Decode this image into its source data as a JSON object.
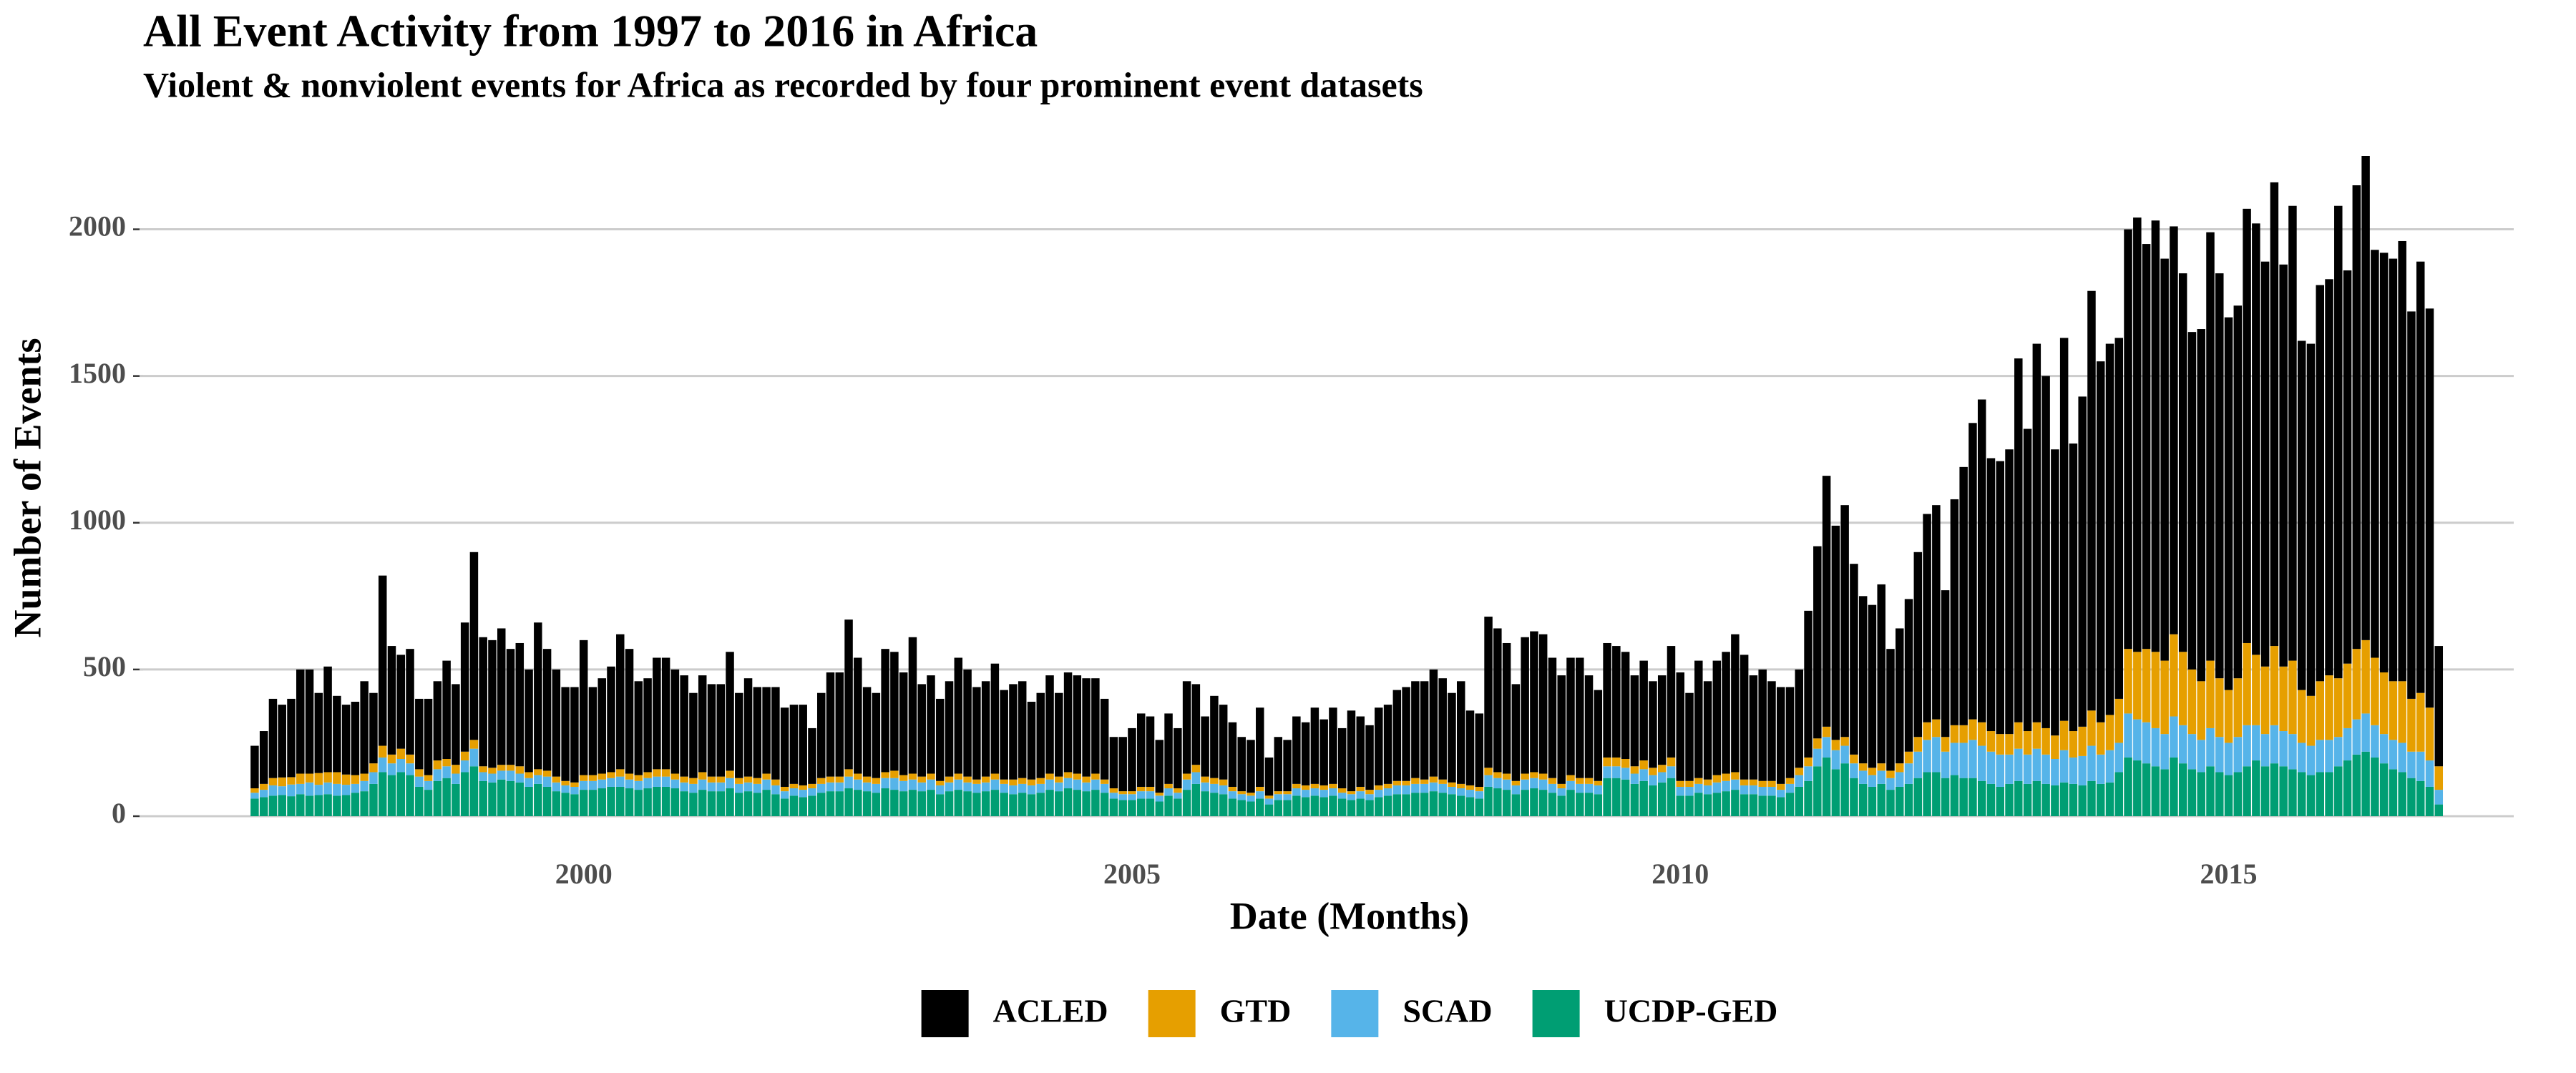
{
  "chart_data": {
    "type": "bar",
    "stacked": true,
    "title": "All Event Activity from 1997 to 2016 in Africa",
    "subtitle": "Violent & nonviolent events for Africa as recorded by four prominent event datasets",
    "x_label": "Date (Months)",
    "y_label": "Number of Events",
    "x": [
      "1997-01",
      "1997-02",
      "1997-03",
      "1997-04",
      "1997-05",
      "1997-06",
      "1997-07",
      "1997-08",
      "1997-09",
      "1997-10",
      "1997-11",
      "1997-12",
      "1998-01",
      "1998-02",
      "1998-03",
      "1998-04",
      "1998-05",
      "1998-06",
      "1998-07",
      "1998-08",
      "1998-09",
      "1998-10",
      "1998-11",
      "1998-12",
      "1999-01",
      "1999-02",
      "1999-03",
      "1999-04",
      "1999-05",
      "1999-06",
      "1999-07",
      "1999-08",
      "1999-09",
      "1999-10",
      "1999-11",
      "1999-12",
      "2000-01",
      "2000-02",
      "2000-03",
      "2000-04",
      "2000-05",
      "2000-06",
      "2000-07",
      "2000-08",
      "2000-09",
      "2000-10",
      "2000-11",
      "2000-12",
      "2001-01",
      "2001-02",
      "2001-03",
      "2001-04",
      "2001-05",
      "2001-06",
      "2001-07",
      "2001-08",
      "2001-09",
      "2001-10",
      "2001-11",
      "2001-12",
      "2002-01",
      "2002-02",
      "2002-03",
      "2002-04",
      "2002-05",
      "2002-06",
      "2002-07",
      "2002-08",
      "2002-09",
      "2002-10",
      "2002-11",
      "2002-12",
      "2003-01",
      "2003-02",
      "2003-03",
      "2003-04",
      "2003-05",
      "2003-06",
      "2003-07",
      "2003-08",
      "2003-09",
      "2003-10",
      "2003-11",
      "2003-12",
      "2004-01",
      "2004-02",
      "2004-03",
      "2004-04",
      "2004-05",
      "2004-06",
      "2004-07",
      "2004-08",
      "2004-09",
      "2004-10",
      "2004-11",
      "2004-12",
      "2005-01",
      "2005-02",
      "2005-03",
      "2005-04",
      "2005-05",
      "2005-06",
      "2005-07",
      "2005-08",
      "2005-09",
      "2005-10",
      "2005-11",
      "2005-12",
      "2006-01",
      "2006-02",
      "2006-03",
      "2006-04",
      "2006-05",
      "2006-06",
      "2006-07",
      "2006-08",
      "2006-09",
      "2006-10",
      "2006-11",
      "2006-12",
      "2007-01",
      "2007-02",
      "2007-03",
      "2007-04",
      "2007-05",
      "2007-06",
      "2007-07",
      "2007-08",
      "2007-09",
      "2007-10",
      "2007-11",
      "2007-12",
      "2008-01",
      "2008-02",
      "2008-03",
      "2008-04",
      "2008-05",
      "2008-06",
      "2008-07",
      "2008-08",
      "2008-09",
      "2008-10",
      "2008-11",
      "2008-12",
      "2009-01",
      "2009-02",
      "2009-03",
      "2009-04",
      "2009-05",
      "2009-06",
      "2009-07",
      "2009-08",
      "2009-09",
      "2009-10",
      "2009-11",
      "2009-12",
      "2010-01",
      "2010-02",
      "2010-03",
      "2010-04",
      "2010-05",
      "2010-06",
      "2010-07",
      "2010-08",
      "2010-09",
      "2010-10",
      "2010-11",
      "2010-12",
      "2011-01",
      "2011-02",
      "2011-03",
      "2011-04",
      "2011-05",
      "2011-06",
      "2011-07",
      "2011-08",
      "2011-09",
      "2011-10",
      "2011-11",
      "2011-12",
      "2012-01",
      "2012-02",
      "2012-03",
      "2012-04",
      "2012-05",
      "2012-06",
      "2012-07",
      "2012-08",
      "2012-09",
      "2012-10",
      "2012-11",
      "2012-12",
      "2013-01",
      "2013-02",
      "2013-03",
      "2013-04",
      "2013-05",
      "2013-06",
      "2013-07",
      "2013-08",
      "2013-09",
      "2013-10",
      "2013-11",
      "2013-12",
      "2014-01",
      "2014-02",
      "2014-03",
      "2014-04",
      "2014-05",
      "2014-06",
      "2014-07",
      "2014-08",
      "2014-09",
      "2014-10",
      "2014-11",
      "2014-12",
      "2015-01",
      "2015-02",
      "2015-03",
      "2015-04",
      "2015-05",
      "2015-06",
      "2015-07",
      "2015-08",
      "2015-09",
      "2015-10",
      "2015-11",
      "2015-12",
      "2016-01",
      "2016-02",
      "2016-03",
      "2016-04",
      "2016-05",
      "2016-06",
      "2016-07",
      "2016-08",
      "2016-09",
      "2016-10",
      "2016-11",
      "2016-12"
    ],
    "series": [
      {
        "name": "ACLED",
        "color": "#000000",
        "values": [
          145,
          180,
          270,
          248,
          267,
          355,
          355,
          273,
          360,
          260,
          238,
          250,
          315,
          240,
          580,
          370,
          320,
          360,
          240,
          260,
          270,
          335,
          275,
          440,
          640,
          440,
          435,
          465,
          395,
          420,
          350,
          500,
          415,
          365,
          320,
          325,
          460,
          300,
          325,
          360,
          460,
          425,
          320,
          320,
          380,
          380,
          355,
          345,
          290,
          330,
          315,
          315,
          405,
          290,
          335,
          310,
          295,
          315,
          270,
          270,
          275,
          190,
          290,
          355,
          355,
          510,
          395,
          305,
          290,
          420,
          405,
          350,
          465,
          315,
          335,
          280,
          325,
          395,
          365,
          315,
          325,
          375,
          305,
          325,
          330,
          265,
          290,
          335,
          285,
          340,
          335,
          335,
          325,
          275,
          175,
          185,
          215,
          250,
          240,
          180,
          240,
          205,
          315,
          275,
          205,
          280,
          255,
          220,
          185,
          180,
          270,
          130,
          185,
          175,
          230,
          215,
          260,
          225,
          260,
          205,
          275,
          240,
          220,
          265,
          270,
          310,
          320,
          330,
          335,
          365,
          345,
          305,
          350,
          255,
          250,
          515,
          490,
          445,
          330,
          465,
          480,
          475,
          410,
          370,
          400,
          410,
          350,
          310,
          390,
          380,
          365,
          310,
          340,
          295,
          305,
          380,
          370,
          300,
          400,
          335,
          390,
          415,
          470,
          425,
          355,
          380,
          340,
          330,
          310,
          335,
          500,
          655,
          855,
          730,
          790,
          650,
          570,
          555,
          610,
          415,
          460,
          520,
          630,
          710,
          730,
          500,
          770,
          880,
          1010,
          1100,
          930,
          930,
          970,
          1240,
          1030,
          1290,
          1200,
          975,
          1305,
          980,
          1125,
          1430,
          1230,
          1265,
          1230,
          1430,
          1480,
          1380,
          1470,
          1370,
          1390,
          1290,
          1150,
          1200,
          1460,
          1380,
          1270,
          1270,
          1480,
          1470,
          1380,
          1580,
          1370,
          1550,
          1190,
          1200,
          1350,
          1350,
          1610,
          1340,
          1580,
          1650,
          1390,
          1430,
          1440,
          1500,
          1320,
          1470,
          1360,
          410
        ]
      },
      {
        "name": "GTD",
        "color": "#E69F00",
        "values": [
          15,
          20,
          25,
          30,
          25,
          35,
          30,
          40,
          35,
          40,
          35,
          30,
          25,
          30,
          40,
          30,
          35,
          30,
          25,
          20,
          30,
          25,
          30,
          30,
          30,
          20,
          20,
          20,
          20,
          25,
          20,
          20,
          20,
          20,
          15,
          15,
          20,
          20,
          20,
          20,
          25,
          20,
          20,
          20,
          25,
          25,
          20,
          20,
          20,
          25,
          20,
          20,
          25,
          20,
          20,
          20,
          20,
          20,
          15,
          15,
          15,
          15,
          20,
          20,
          20,
          25,
          20,
          20,
          20,
          20,
          25,
          20,
          20,
          20,
          20,
          15,
          20,
          20,
          20,
          15,
          20,
          20,
          15,
          20,
          20,
          20,
          20,
          20,
          20,
          20,
          20,
          20,
          20,
          15,
          15,
          10,
          10,
          15,
          15,
          10,
          15,
          15,
          20,
          25,
          20,
          20,
          20,
          15,
          10,
          10,
          15,
          10,
          10,
          10,
          15,
          15,
          15,
          15,
          15,
          15,
          10,
          15,
          15,
          15,
          15,
          15,
          15,
          20,
          15,
          20,
          15,
          15,
          15,
          15,
          15,
          25,
          20,
          20,
          15,
          20,
          20,
          20,
          20,
          15,
          20,
          20,
          20,
          15,
          30,
          30,
          30,
          25,
          30,
          25,
          25,
          30,
          20,
          20,
          20,
          20,
          25,
          25,
          25,
          20,
          20,
          20,
          20,
          20,
          20,
          25,
          30,
          35,
          35,
          35,
          30,
          30,
          25,
          25,
          25,
          25,
          30,
          40,
          50,
          60,
          60,
          50,
          60,
          60,
          70,
          80,
          70,
          70,
          70,
          90,
          80,
          90,
          90,
          80,
          100,
          90,
          100,
          120,
          110,
          120,
          150,
          220,
          230,
          250,
          260,
          250,
          280,
          250,
          220,
          200,
          230,
          200,
          180,
          200,
          280,
          240,
          230,
          270,
          220,
          250,
          180,
          170,
          200,
          220,
          200,
          220,
          240,
          250,
          230,
          210,
          200,
          210,
          180,
          200,
          180,
          80
        ]
      },
      {
        "name": "SCAD",
        "color": "#56B4E9",
        "values": [
          20,
          25,
          35,
          30,
          40,
          35,
          45,
          35,
          40,
          40,
          35,
          30,
          35,
          40,
          50,
          40,
          45,
          40,
          35,
          30,
          40,
          40,
          35,
          40,
          60,
          30,
          30,
          30,
          35,
          30,
          30,
          30,
          35,
          30,
          25,
          25,
          30,
          30,
          30,
          30,
          35,
          30,
          30,
          35,
          35,
          35,
          30,
          30,
          30,
          35,
          30,
          30,
          35,
          30,
          30,
          30,
          35,
          30,
          25,
          25,
          25,
          25,
          30,
          30,
          30,
          40,
          35,
          30,
          30,
          35,
          40,
          35,
          35,
          30,
          35,
          30,
          30,
          35,
          30,
          30,
          30,
          35,
          30,
          30,
          30,
          30,
          30,
          35,
          30,
          35,
          35,
          30,
          35,
          30,
          20,
          20,
          20,
          25,
          25,
          20,
          25,
          20,
          35,
          40,
          30,
          30,
          30,
          25,
          20,
          20,
          25,
          20,
          20,
          20,
          25,
          25,
          25,
          25,
          25,
          20,
          20,
          25,
          20,
          25,
          25,
          30,
          30,
          30,
          30,
          30,
          30,
          25,
          25,
          25,
          25,
          40,
          35,
          35,
          30,
          35,
          35,
          35,
          30,
          25,
          30,
          30,
          30,
          30,
          40,
          40,
          40,
          35,
          40,
          35,
          35,
          40,
          30,
          30,
          30,
          30,
          35,
          35,
          35,
          30,
          30,
          30,
          30,
          25,
          30,
          40,
          50,
          60,
          70,
          65,
          60,
          50,
          45,
          40,
          45,
          40,
          50,
          70,
          90,
          110,
          120,
          90,
          110,
          120,
          130,
          120,
          110,
          110,
          100,
          110,
          100,
          110,
          100,
          90,
          110,
          90,
          100,
          120,
          100,
          110,
          100,
          150,
          140,
          140,
          130,
          120,
          140,
          130,
          120,
          110,
          130,
          120,
          110,
          120,
          140,
          120,
          110,
          130,
          120,
          120,
          100,
          100,
          110,
          110,
          100,
          110,
          120,
          130,
          110,
          100,
          100,
          100,
          90,
          100,
          90,
          50
        ]
      },
      {
        "name": "UCDP-GED",
        "color": "#009E73",
        "values": [
          60,
          65,
          70,
          72,
          68,
          75,
          70,
          72,
          75,
          70,
          72,
          80,
          85,
          110,
          150,
          140,
          150,
          140,
          100,
          90,
          120,
          130,
          110,
          150,
          170,
          120,
          115,
          125,
          120,
          115,
          100,
          110,
          100,
          85,
          80,
          75,
          90,
          90,
          95,
          100,
          100,
          95,
          90,
          95,
          100,
          100,
          95,
          85,
          80,
          90,
          85,
          85,
          95,
          80,
          85,
          80,
          90,
          75,
          60,
          70,
          65,
          70,
          80,
          85,
          85,
          95,
          90,
          85,
          80,
          95,
          90,
          85,
          90,
          85,
          90,
          75,
          85,
          90,
          85,
          80,
          85,
          90,
          80,
          75,
          80,
          75,
          80,
          90,
          85,
          95,
          90,
          85,
          90,
          80,
          60,
          55,
          55,
          60,
          60,
          50,
          70,
          60,
          90,
          110,
          85,
          80,
          75,
          60,
          55,
          50,
          60,
          40,
          55,
          55,
          70,
          65,
          70,
          65,
          70,
          60,
          55,
          60,
          55,
          65,
          70,
          75,
          75,
          80,
          80,
          85,
          80,
          75,
          70,
          65,
          60,
          100,
          95,
          90,
          75,
          90,
          95,
          90,
          80,
          70,
          90,
          80,
          80,
          75,
          130,
          130,
          125,
          110,
          120,
          105,
          115,
          130,
          70,
          70,
          80,
          75,
          80,
          85,
          90,
          75,
          75,
          70,
          70,
          65,
          80,
          100,
          120,
          170,
          200,
          160,
          180,
          130,
          110,
          100,
          110,
          90,
          100,
          110,
          130,
          150,
          150,
          130,
          140,
          130,
          130,
          120,
          110,
          100,
          110,
          120,
          110,
          120,
          110,
          105,
          115,
          110,
          105,
          120,
          110,
          115,
          150,
          200,
          190,
          180,
          170,
          160,
          200,
          180,
          160,
          150,
          170,
          150,
          140,
          150,
          170,
          190,
          170,
          180,
          170,
          160,
          150,
          140,
          150,
          150,
          170,
          190,
          210,
          220,
          200,
          180,
          160,
          150,
          130,
          120,
          100,
          40
        ]
      }
    ],
    "xlim": [
      1995.95,
      2017.6
    ],
    "xticks": [
      2000,
      2005,
      2010,
      2015
    ],
    "ylim": [
      0,
      2250
    ],
    "yticks": [
      0,
      500,
      1000,
      1500,
      2000
    ],
    "grid": true,
    "legend": "bottom"
  }
}
